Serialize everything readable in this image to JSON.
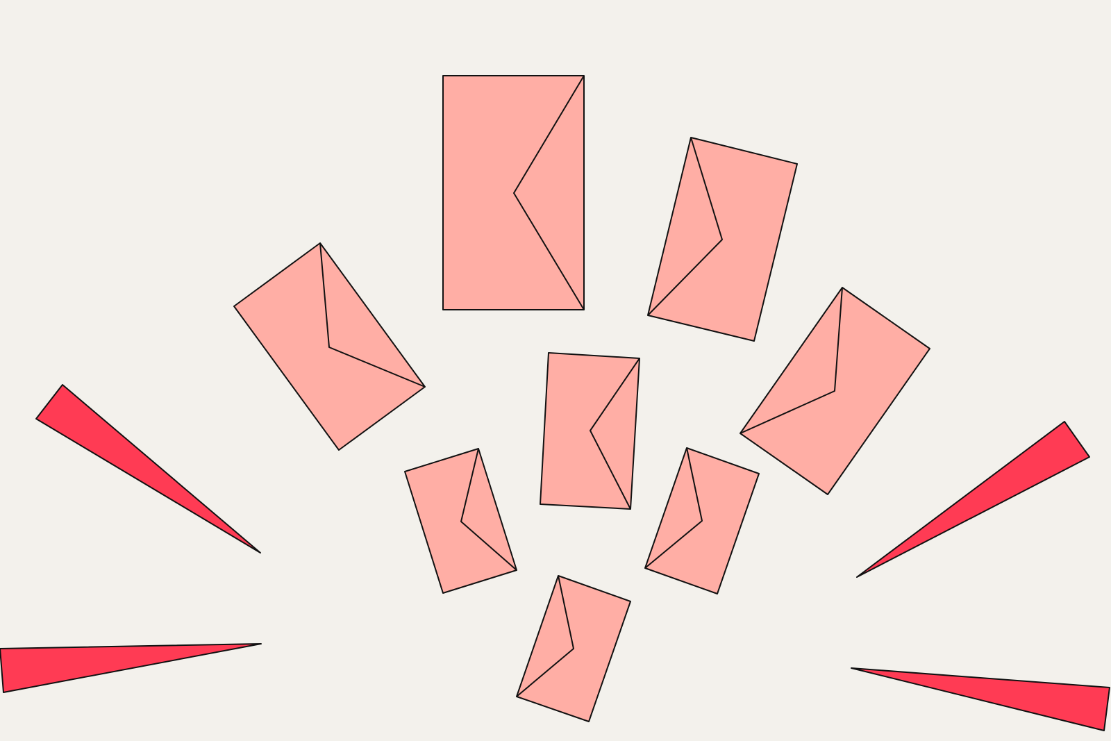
{
  "illustration": {
    "subject": "flying-envelopes-burst",
    "colors": {
      "background": "#f3f1ec",
      "envelope_fill": "#ffaea5",
      "spike_fill": "#ff3b54",
      "outline": "#111111"
    },
    "envelope_count": 8,
    "spike_count": 4
  }
}
